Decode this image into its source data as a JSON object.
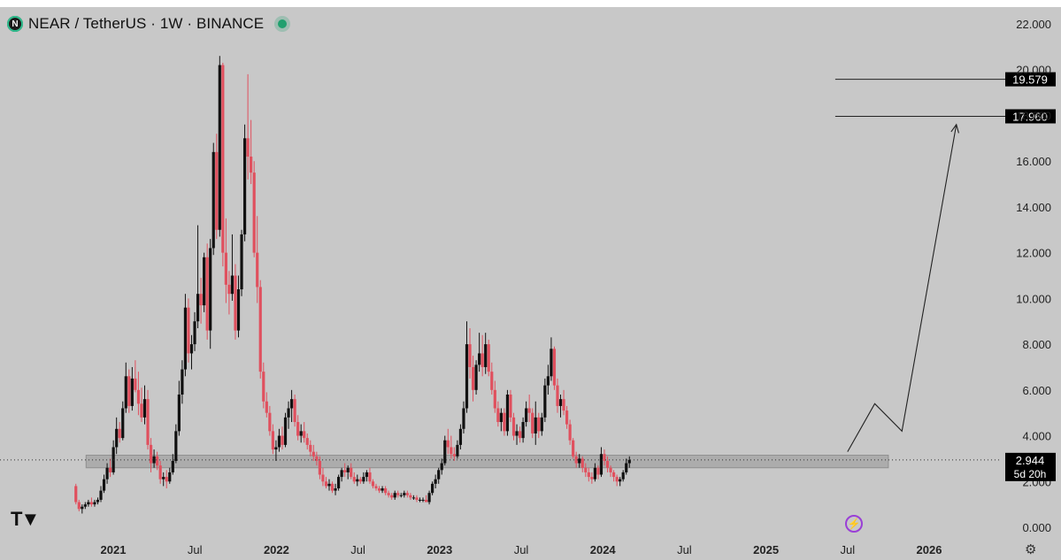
{
  "header": {
    "symbol_title": "NEAR / TetherUS · 1W · BINANCE",
    "logo_icon": "near-logo-icon",
    "status_color": "#20a06e"
  },
  "colors": {
    "background": "#c8c8c8",
    "up_candle": "#111111",
    "down_candle": "#e0505e",
    "zone": "#a9a9a9",
    "label_bg": "#000000"
  },
  "chart_data": {
    "type": "candlestick",
    "title": "NEAR / TetherUS · 1W · BINANCE",
    "ylim": [
      0,
      22
    ],
    "y_ticks": [
      "0.000",
      "2.000",
      "4.000",
      "6.000",
      "8.000",
      "10.000",
      "12.000",
      "14.000",
      "16.000",
      "18.000",
      "20.000",
      "22.000"
    ],
    "x_ticks": [
      {
        "label": "2021",
        "date": "2021-01"
      },
      {
        "label": "Jul",
        "date": "2021-07"
      },
      {
        "label": "2022",
        "date": "2022-01"
      },
      {
        "label": "Jul",
        "date": "2022-07"
      },
      {
        "label": "2023",
        "date": "2023-01"
      },
      {
        "label": "Jul",
        "date": "2023-07"
      },
      {
        "label": "2024",
        "date": "2024-01"
      },
      {
        "label": "Jul",
        "date": "2024-07"
      },
      {
        "label": "2025",
        "date": "2025-01"
      },
      {
        "label": "Jul",
        "date": "2025-07"
      },
      {
        "label": "2026",
        "date": "2026-01"
      }
    ],
    "series": [
      {
        "values": [
          [
            1.8,
            1.9,
            1.0,
            1.1
          ],
          [
            1.1,
            1.2,
            0.7,
            0.8
          ],
          [
            0.8,
            1.0,
            0.6,
            0.9
          ],
          [
            0.9,
            1.1,
            0.8,
            1.0
          ],
          [
            1.0,
            1.2,
            0.9,
            1.1
          ],
          [
            1.1,
            1.3,
            0.9,
            1.0
          ],
          [
            1.0,
            1.2,
            0.9,
            1.1
          ],
          [
            1.1,
            1.3,
            1.0,
            1.2
          ],
          [
            1.2,
            1.8,
            1.1,
            1.6
          ],
          [
            1.6,
            2.3,
            1.5,
            2.1
          ],
          [
            2.1,
            2.8,
            1.9,
            2.6
          ],
          [
            2.6,
            3.0,
            2.2,
            2.4
          ],
          [
            2.4,
            3.8,
            2.3,
            3.5
          ],
          [
            3.5,
            4.8,
            3.2,
            4.3
          ],
          [
            4.3,
            4.6,
            3.7,
            3.9
          ],
          [
            3.9,
            5.5,
            3.8,
            5.2
          ],
          [
            5.2,
            7.2,
            5.0,
            6.6
          ],
          [
            6.6,
            6.9,
            5.0,
            5.3
          ],
          [
            5.3,
            7.0,
            5.1,
            6.5
          ],
          [
            6.5,
            7.3,
            5.9,
            6.0
          ],
          [
            6.0,
            6.8,
            4.9,
            5.4
          ],
          [
            5.4,
            6.1,
            4.6,
            4.8
          ],
          [
            4.8,
            6.2,
            4.5,
            5.6
          ],
          [
            5.6,
            6.0,
            3.4,
            3.6
          ],
          [
            3.6,
            3.9,
            2.4,
            2.8
          ],
          [
            2.8,
            3.4,
            2.6,
            3.1
          ],
          [
            3.1,
            3.3,
            2.5,
            2.7
          ],
          [
            2.7,
            2.9,
            1.9,
            2.1
          ],
          [
            2.1,
            2.4,
            1.8,
            2.2
          ],
          [
            2.2,
            2.5,
            1.7,
            2.0
          ],
          [
            2.0,
            2.6,
            1.9,
            2.4
          ],
          [
            2.4,
            3.2,
            2.3,
            2.9
          ],
          [
            2.9,
            4.5,
            2.8,
            4.2
          ],
          [
            4.2,
            6.4,
            4.0,
            5.8
          ],
          [
            5.8,
            7.3,
            5.4,
            6.9
          ],
          [
            6.9,
            10.2,
            6.6,
            9.6
          ],
          [
            9.6,
            10.0,
            7.2,
            7.6
          ],
          [
            7.6,
            8.4,
            6.9,
            8.0
          ],
          [
            8.0,
            9.4,
            7.7,
            9.0
          ],
          [
            9.0,
            13.2,
            8.7,
            10.2
          ],
          [
            10.2,
            10.9,
            8.9,
            9.7
          ],
          [
            9.7,
            12.0,
            9.4,
            11.8
          ],
          [
            11.8,
            12.4,
            8.2,
            8.6
          ],
          [
            8.6,
            12.6,
            7.8,
            12.2
          ],
          [
            12.2,
            16.8,
            11.9,
            16.4
          ],
          [
            16.4,
            17.2,
            12.6,
            13.0
          ],
          [
            13.0,
            20.6,
            12.7,
            20.2
          ],
          [
            20.2,
            20.3,
            11.4,
            12.0
          ],
          [
            12.0,
            13.5,
            9.8,
            10.6
          ],
          [
            10.6,
            11.2,
            9.3,
            10.2
          ],
          [
            10.2,
            12.8,
            9.9,
            11.0
          ],
          [
            11.0,
            11.5,
            8.2,
            8.6
          ],
          [
            8.6,
            11.0,
            8.3,
            10.4
          ],
          [
            10.4,
            13.0,
            10.1,
            12.8
          ],
          [
            12.8,
            17.6,
            12.5,
            17.0
          ],
          [
            17.0,
            19.8,
            15.2,
            16.2
          ],
          [
            16.2,
            17.8,
            15.0,
            15.5
          ],
          [
            15.5,
            16.0,
            11.8,
            12.0
          ],
          [
            12.0,
            13.6,
            9.8,
            10.5
          ],
          [
            10.5,
            10.8,
            6.5,
            6.8
          ],
          [
            6.8,
            7.2,
            5.2,
            5.5
          ],
          [
            5.5,
            5.9,
            4.8,
            5.0
          ],
          [
            5.0,
            5.3,
            4.0,
            4.2
          ],
          [
            4.2,
            4.5,
            3.2,
            3.4
          ],
          [
            3.4,
            3.8,
            2.9,
            3.5
          ],
          [
            3.5,
            4.3,
            3.3,
            4.0
          ],
          [
            4.0,
            4.4,
            3.4,
            3.6
          ],
          [
            3.6,
            5.0,
            3.5,
            4.8
          ],
          [
            4.8,
            5.5,
            4.3,
            5.2
          ],
          [
            5.2,
            6.0,
            4.6,
            5.6
          ],
          [
            5.6,
            5.8,
            4.4,
            4.6
          ],
          [
            4.6,
            4.9,
            3.8,
            4.0
          ],
          [
            4.0,
            4.5,
            3.7,
            4.2
          ],
          [
            4.2,
            4.6,
            3.7,
            3.9
          ],
          [
            3.9,
            4.1,
            3.4,
            3.6
          ],
          [
            3.6,
            3.8,
            3.1,
            3.3
          ],
          [
            3.3,
            3.6,
            2.9,
            3.1
          ],
          [
            3.1,
            3.3,
            2.7,
            2.9
          ],
          [
            2.9,
            3.1,
            2.1,
            2.3
          ],
          [
            2.3,
            2.6,
            1.8,
            2.0
          ],
          [
            2.0,
            2.2,
            1.7,
            1.8
          ],
          [
            1.8,
            2.1,
            1.6,
            1.9
          ],
          [
            1.9,
            2.0,
            1.5,
            1.6
          ],
          [
            1.6,
            1.9,
            1.4,
            1.7
          ],
          [
            1.7,
            2.3,
            1.6,
            2.2
          ],
          [
            2.2,
            2.6,
            2.0,
            2.5
          ],
          [
            2.5,
            2.8,
            2.2,
            2.4
          ],
          [
            2.4,
            2.7,
            2.1,
            2.6
          ],
          [
            2.6,
            2.8,
            2.1,
            2.2
          ],
          [
            2.2,
            2.4,
            1.9,
            2.0
          ],
          [
            2.0,
            2.3,
            1.8,
            2.1
          ],
          [
            2.1,
            2.2,
            1.9,
            2.0
          ],
          [
            2.0,
            2.4,
            1.9,
            2.2
          ],
          [
            2.2,
            2.5,
            2.0,
            2.4
          ],
          [
            2.4,
            2.6,
            1.9,
            2.0
          ],
          [
            2.0,
            2.1,
            1.7,
            1.8
          ],
          [
            1.8,
            1.9,
            1.6,
            1.7
          ],
          [
            1.7,
            1.8,
            1.5,
            1.6
          ],
          [
            1.6,
            1.8,
            1.5,
            1.7
          ],
          [
            1.7,
            1.8,
            1.4,
            1.5
          ],
          [
            1.5,
            1.6,
            1.3,
            1.4
          ],
          [
            1.4,
            1.5,
            1.2,
            1.3
          ],
          [
            1.3,
            1.6,
            1.2,
            1.5
          ],
          [
            1.5,
            1.6,
            1.3,
            1.4
          ],
          [
            1.4,
            1.5,
            1.3,
            1.4
          ],
          [
            1.4,
            1.6,
            1.3,
            1.5
          ],
          [
            1.5,
            1.6,
            1.3,
            1.4
          ],
          [
            1.4,
            1.5,
            1.2,
            1.3
          ],
          [
            1.3,
            1.4,
            1.2,
            1.3
          ],
          [
            1.3,
            1.4,
            1.1,
            1.2
          ],
          [
            1.2,
            1.3,
            1.1,
            1.2
          ],
          [
            1.2,
            1.3,
            1.1,
            1.2
          ],
          [
            1.2,
            1.4,
            1.1,
            1.1
          ],
          [
            1.1,
            1.6,
            1.0,
            1.5
          ],
          [
            1.5,
            2.0,
            1.4,
            1.9
          ],
          [
            1.9,
            2.3,
            1.7,
            2.1
          ],
          [
            2.1,
            2.6,
            1.9,
            2.5
          ],
          [
            2.5,
            3.0,
            2.3,
            2.8
          ],
          [
            2.8,
            4.0,
            2.7,
            3.8
          ],
          [
            3.8,
            4.3,
            3.2,
            3.5
          ],
          [
            3.5,
            4.0,
            3.0,
            3.2
          ],
          [
            3.2,
            3.5,
            2.9,
            3.1
          ],
          [
            3.1,
            3.8,
            3.0,
            3.6
          ],
          [
            3.6,
            4.5,
            3.4,
            4.3
          ],
          [
            4.3,
            5.5,
            4.1,
            5.2
          ],
          [
            5.2,
            9.0,
            5.0,
            8.0
          ],
          [
            8.0,
            8.7,
            6.5,
            7.0
          ],
          [
            7.0,
            7.5,
            5.5,
            6.0
          ],
          [
            6.0,
            7.3,
            5.8,
            7.1
          ],
          [
            7.1,
            8.5,
            6.8,
            7.6
          ],
          [
            7.6,
            8.4,
            6.6,
            7.0
          ],
          [
            7.0,
            8.5,
            6.7,
            8.0
          ],
          [
            8.0,
            8.2,
            6.6,
            6.8
          ],
          [
            6.8,
            7.2,
            5.8,
            6.0
          ],
          [
            6.0,
            6.4,
            5.0,
            5.2
          ],
          [
            5.2,
            5.5,
            4.4,
            4.6
          ],
          [
            4.6,
            5.2,
            4.2,
            5.0
          ],
          [
            5.0,
            5.2,
            4.0,
            4.2
          ],
          [
            4.2,
            6.0,
            4.0,
            5.8
          ],
          [
            5.8,
            6.0,
            4.6,
            4.8
          ],
          [
            4.8,
            5.0,
            3.8,
            4.0
          ],
          [
            4.0,
            4.5,
            3.6,
            4.2
          ],
          [
            4.2,
            4.4,
            3.7,
            3.9
          ],
          [
            3.9,
            4.8,
            3.7,
            4.6
          ],
          [
            4.6,
            5.5,
            4.4,
            5.2
          ],
          [
            5.2,
            5.8,
            4.6,
            5.0
          ],
          [
            5.0,
            5.2,
            3.9,
            4.1
          ],
          [
            4.1,
            5.5,
            3.6,
            4.8
          ],
          [
            4.8,
            5.0,
            3.9,
            4.2
          ],
          [
            4.2,
            5.0,
            4.0,
            4.8
          ],
          [
            4.8,
            6.5,
            4.6,
            6.2
          ],
          [
            6.2,
            7.1,
            5.8,
            6.6
          ],
          [
            6.6,
            8.3,
            6.4,
            7.8
          ],
          [
            7.8,
            7.9,
            6.0,
            6.2
          ],
          [
            6.2,
            6.5,
            5.0,
            5.3
          ],
          [
            5.3,
            5.8,
            4.8,
            5.6
          ],
          [
            5.6,
            6.0,
            4.9,
            5.1
          ],
          [
            5.1,
            5.3,
            4.3,
            4.5
          ],
          [
            4.5,
            4.7,
            3.6,
            3.8
          ],
          [
            3.8,
            3.9,
            3.0,
            3.1
          ],
          [
            3.1,
            3.3,
            2.6,
            2.8
          ],
          [
            2.8,
            3.2,
            2.6,
            3.0
          ],
          [
            3.0,
            3.1,
            2.4,
            2.6
          ],
          [
            2.6,
            2.8,
            2.2,
            2.4
          ],
          [
            2.4,
            2.6,
            2.0,
            2.2
          ],
          [
            2.2,
            2.4,
            1.9,
            2.1
          ],
          [
            2.1,
            2.8,
            2.0,
            2.6
          ],
          [
            2.6,
            2.7,
            2.1,
            2.3
          ],
          [
            2.3,
            3.5,
            2.2,
            3.2
          ],
          [
            3.2,
            3.4,
            2.7,
            2.9
          ],
          [
            2.9,
            3.1,
            2.4,
            2.6
          ],
          [
            2.6,
            2.7,
            2.2,
            2.4
          ],
          [
            2.4,
            2.5,
            2.0,
            2.2
          ],
          [
            2.2,
            2.3,
            1.8,
            2.0
          ],
          [
            2.0,
            2.2,
            1.8,
            2.1
          ],
          [
            2.1,
            2.5,
            2.0,
            2.4
          ],
          [
            2.4,
            3.0,
            2.3,
            2.8
          ],
          [
            2.8,
            3.1,
            2.6,
            2.944
          ]
        ]
      }
    ],
    "zone": {
      "low": 2.6,
      "high": 3.15
    },
    "levels": [
      {
        "label": "19.579",
        "value": 19.579
      },
      {
        "label": "17.960",
        "value": 17.96
      }
    ],
    "projection": [
      {
        "date": "2025-07",
        "value": 3.3
      },
      {
        "date": "2025-09",
        "value": 5.4
      },
      {
        "date": "2025-11",
        "value": 4.2
      },
      {
        "date": "2026-03",
        "value": 17.6
      }
    ],
    "last_price": {
      "label": "2.944",
      "value": 2.944,
      "countdown": "5d 20h"
    }
  }
}
